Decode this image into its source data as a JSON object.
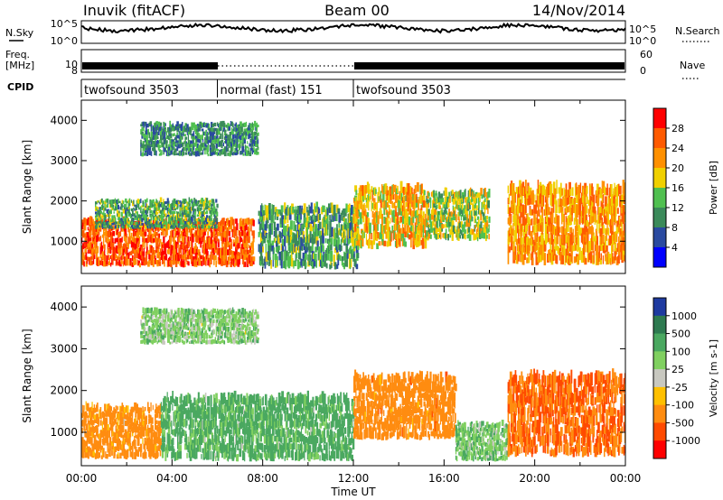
{
  "header": {
    "station": "Inuvik (fitACF)",
    "beam": "Beam 00",
    "date": "14/Nov/2014"
  },
  "nsky_panel": {
    "label": "N.Sky",
    "right_label": "N.Search",
    "ticks_left": [
      "10^5",
      "10^0"
    ],
    "ticks_right": [
      "10^5",
      "10^0"
    ]
  },
  "freq_panel": {
    "label": "Freq.",
    "unit": "[MHz]",
    "ticks_left": [
      "10",
      "8"
    ],
    "right_label": "Nave",
    "ticks_right": [
      "60",
      "0"
    ]
  },
  "cpid": {
    "label": "CPID",
    "segments": [
      {
        "name": "twofsound 3503",
        "start": 0,
        "end": 6
      },
      {
        "name": "normal (fast) 151",
        "start": 6,
        "end": 12
      },
      {
        "name": "twofsound 3503",
        "start": 12,
        "end": 24
      }
    ]
  },
  "x_axis": {
    "title": "Time UT",
    "ticks": [
      "00:00",
      "04:00",
      "08:00",
      "12:00",
      "16:00",
      "20:00",
      "00:00"
    ]
  },
  "colors": {
    "power": [
      "#0000ff",
      "#2a4aa0",
      "#3b8a5a",
      "#50c050",
      "#f0d000",
      "#ff9000",
      "#ff5a00",
      "#ff0000"
    ],
    "velocity": [
      "#1e3aa0",
      "#2e7a50",
      "#4aa860",
      "#80d060",
      "#c8c8c0",
      "#ffc000",
      "#ff8c10",
      "#ff4a00",
      "#ff0000"
    ]
  },
  "chart_data": [
    {
      "type": "heatmap",
      "title": "Power",
      "ylabel": "Slant Range [km]",
      "xlabel": "",
      "xlim": [
        0,
        24
      ],
      "ylim": [
        200,
        4500
      ],
      "y_ticks": [
        "1000",
        "2000",
        "3000",
        "4000"
      ],
      "colorbar": {
        "label": "Power [dB]",
        "ticks": [
          "4",
          "8",
          "12",
          "16",
          "20",
          "24",
          "28"
        ],
        "range": [
          0,
          32
        ]
      },
      "echo_bands": [
        {
          "t_start": 0,
          "t_end": 7.6,
          "r_low": 350,
          "r_high": 1500,
          "level": 26
        },
        {
          "t_start": 0.6,
          "t_end": 6.0,
          "r_low": 1300,
          "r_high": 2000,
          "level": 12
        },
        {
          "t_start": 7.8,
          "t_end": 12.2,
          "r_low": 300,
          "r_high": 1800,
          "level": 12
        },
        {
          "t_start": 12.0,
          "t_end": 15.2,
          "r_low": 800,
          "r_high": 2300,
          "level": 20
        },
        {
          "t_start": 15.2,
          "t_end": 18.0,
          "r_low": 1000,
          "r_high": 2200,
          "level": 16
        },
        {
          "t_start": 18.8,
          "t_end": 24,
          "r_low": 400,
          "r_high": 2300,
          "level": 22
        },
        {
          "t_start": 2.6,
          "t_end": 7.8,
          "r_low": 3100,
          "r_high": 3900,
          "level": 10
        }
      ]
    },
    {
      "type": "heatmap",
      "title": "Velocity",
      "ylabel": "Slant Range [km]",
      "xlabel": "Time UT",
      "xlim": [
        0,
        24
      ],
      "ylim": [
        200,
        4500
      ],
      "y_ticks": [
        "1000",
        "2000",
        "3000",
        "4000"
      ],
      "colorbar": {
        "label": "Velocity [m s-1]",
        "ticks": [
          "1000",
          "500",
          "100",
          "25",
          "-25",
          "-100",
          "-500",
          "-1000"
        ],
        "range": [
          -1000,
          1000
        ]
      },
      "echo_bands": [
        {
          "t_start": 0,
          "t_end": 3.5,
          "r_low": 350,
          "r_high": 1600,
          "level": -200
        },
        {
          "t_start": 3.5,
          "t_end": 12.0,
          "r_low": 300,
          "r_high": 1800,
          "level": 150
        },
        {
          "t_start": 12.0,
          "t_end": 16.5,
          "r_low": 800,
          "r_high": 2300,
          "level": -300
        },
        {
          "t_start": 16.5,
          "t_end": 18.8,
          "r_low": 300,
          "r_high": 1200,
          "level": 80
        },
        {
          "t_start": 18.8,
          "t_end": 24,
          "r_low": 400,
          "r_high": 2300,
          "level": -500
        },
        {
          "t_start": 2.6,
          "t_end": 7.8,
          "r_low": 3100,
          "r_high": 3900,
          "level": 60
        }
      ]
    }
  ]
}
